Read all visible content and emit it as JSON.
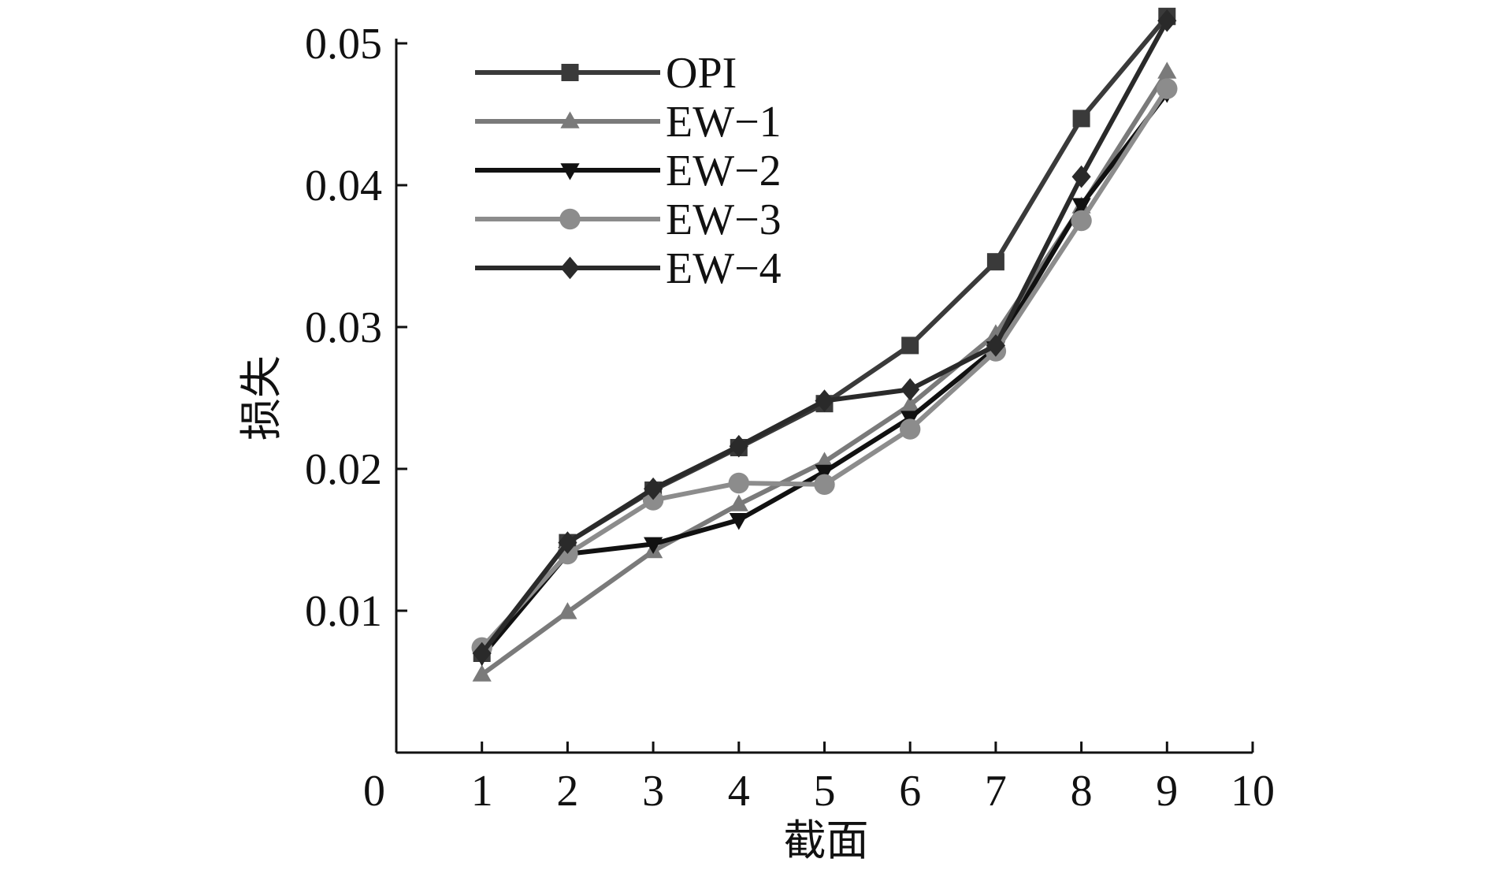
{
  "chart_data": {
    "type": "line",
    "title": "",
    "xlabel": "截面",
    "ylabel": "损失",
    "xlim": [
      0,
      10
    ],
    "ylim": [
      0.0,
      0.05
    ],
    "x_ticks": [
      "0",
      "1",
      "2",
      "3",
      "4",
      "5",
      "6",
      "7",
      "8",
      "9",
      "10"
    ],
    "y_ticks": [
      "0.01",
      "0.02",
      "0.03",
      "0.04",
      "0.05"
    ],
    "x": [
      1,
      2,
      3,
      4,
      5,
      6,
      7,
      8,
      9
    ],
    "legend_position": "top-left",
    "grid": false,
    "series": [
      {
        "name": "OPI",
        "marker": "square",
        "color": "#3a3a3a",
        "values": [
          0.007,
          0.0148,
          0.0185,
          0.0215,
          0.0246,
          0.0287,
          0.0346,
          0.0447,
          0.0519
        ]
      },
      {
        "name": "EW−1",
        "marker": "triangle-up",
        "color": "#7a7a7a",
        "values": [
          0.0055,
          0.0099,
          0.0142,
          0.0175,
          0.0205,
          0.0245,
          0.0295,
          0.0385,
          0.048
        ]
      },
      {
        "name": "EW−2",
        "marker": "triangle-down",
        "color": "#111111",
        "values": [
          0.0068,
          0.014,
          0.0147,
          0.0164,
          0.0198,
          0.0236,
          0.0285,
          0.0386,
          0.0465
        ]
      },
      {
        "name": "EW−3",
        "marker": "circle",
        "color": "#8c8c8c",
        "values": [
          0.0074,
          0.014,
          0.0178,
          0.019,
          0.0189,
          0.0228,
          0.0283,
          0.0375,
          0.0468
        ]
      },
      {
        "name": "EW−4",
        "marker": "diamond",
        "color": "#2a2a2a",
        "values": [
          0.007,
          0.0148,
          0.0186,
          0.0216,
          0.0248,
          0.0256,
          0.0287,
          0.0406,
          0.0516
        ]
      }
    ]
  }
}
